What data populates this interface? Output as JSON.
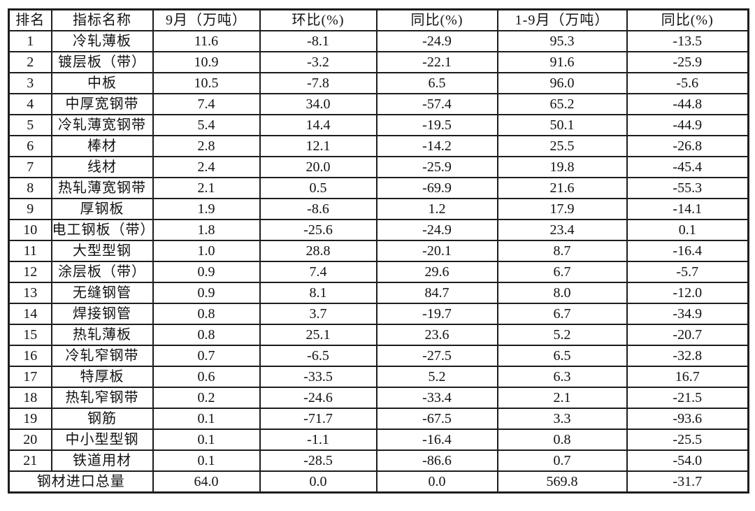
{
  "chart_data": {
    "type": "table",
    "title": "",
    "columns": [
      "排名",
      "指标名称",
      "9月（万吨）",
      "环比(%)",
      "同比(%)",
      "1-9月（万吨）",
      "同比(%)"
    ],
    "rows": [
      [
        "1",
        "冷轧薄板",
        "11.6",
        "-8.1",
        "-24.9",
        "95.3",
        "-13.5"
      ],
      [
        "2",
        "镀层板（带）",
        "10.9",
        "-3.2",
        "-22.1",
        "91.6",
        "-25.9"
      ],
      [
        "3",
        "中板",
        "10.5",
        "-7.8",
        "6.5",
        "96.0",
        "-5.6"
      ],
      [
        "4",
        "中厚宽钢带",
        "7.4",
        "34.0",
        "-57.4",
        "65.2",
        "-44.8"
      ],
      [
        "5",
        "冷轧薄宽钢带",
        "5.4",
        "14.4",
        "-19.5",
        "50.1",
        "-44.9"
      ],
      [
        "6",
        "棒材",
        "2.8",
        "12.1",
        "-14.2",
        "25.5",
        "-26.8"
      ],
      [
        "7",
        "线材",
        "2.4",
        "20.0",
        "-25.9",
        "19.8",
        "-45.4"
      ],
      [
        "8",
        "热轧薄宽钢带",
        "2.1",
        "0.5",
        "-69.9",
        "21.6",
        "-55.3"
      ],
      [
        "9",
        "厚钢板",
        "1.9",
        "-8.6",
        "1.2",
        "17.9",
        "-14.1"
      ],
      [
        "10",
        "电工钢板（带）",
        "1.8",
        "-25.6",
        "-24.9",
        "23.4",
        "0.1"
      ],
      [
        "11",
        "大型型钢",
        "1.0",
        "28.8",
        "-20.1",
        "8.7",
        "-16.4"
      ],
      [
        "12",
        "涂层板（带）",
        "0.9",
        "7.4",
        "29.6",
        "6.7",
        "-5.7"
      ],
      [
        "13",
        "无缝钢管",
        "0.9",
        "8.1",
        "84.7",
        "8.0",
        "-12.0"
      ],
      [
        "14",
        "焊接钢管",
        "0.8",
        "3.7",
        "-19.7",
        "6.7",
        "-34.9"
      ],
      [
        "15",
        "热轧薄板",
        "0.8",
        "25.1",
        "23.6",
        "5.2",
        "-20.7"
      ],
      [
        "16",
        "冷轧窄钢带",
        "0.7",
        "-6.5",
        "-27.5",
        "6.5",
        "-32.8"
      ],
      [
        "17",
        "特厚板",
        "0.6",
        "-33.5",
        "5.2",
        "6.3",
        "16.7"
      ],
      [
        "18",
        "热轧窄钢带",
        "0.2",
        "-24.6",
        "-33.4",
        "2.1",
        "-21.5"
      ],
      [
        "19",
        "钢筋",
        "0.1",
        "-71.7",
        "-67.5",
        "3.3",
        "-93.6"
      ],
      [
        "20",
        "中小型型钢",
        "0.1",
        "-1.1",
        "-16.4",
        "0.8",
        "-25.5"
      ],
      [
        "21",
        "铁道用材",
        "0.1",
        "-28.5",
        "-86.6",
        "0.7",
        "-54.0"
      ]
    ],
    "total_row": {
      "label": "钢材进口总量",
      "values": [
        "64.0",
        "0.0",
        "0.0",
        "569.8",
        "-31.7"
      ]
    },
    "style": {
      "border_color": "#1d1d1d",
      "text_color": "#121212",
      "background": "#ffffff",
      "grid": true
    }
  }
}
